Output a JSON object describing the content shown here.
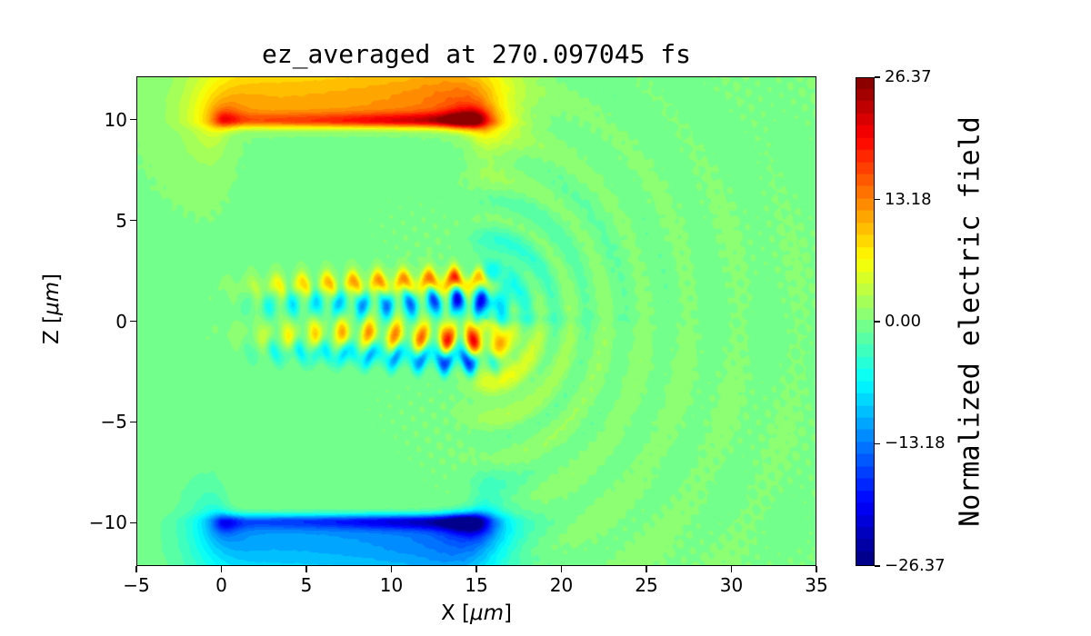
{
  "chart_data": {
    "type": "heatmap",
    "title": "ez_averaged at 270.097045 fs",
    "xlabel": {
      "prefix": "X [",
      "unit": "μm",
      "suffix": "]"
    },
    "ylabel": {
      "prefix": "Z [",
      "unit": "μm",
      "suffix": "]"
    },
    "xlim": [
      -5,
      35
    ],
    "ylim": [
      -12.14,
      12.14
    ],
    "xticks": [
      {
        "value": -5,
        "label": "−5"
      },
      {
        "value": 0,
        "label": "0"
      },
      {
        "value": 5,
        "label": "5"
      },
      {
        "value": 10,
        "label": "10"
      },
      {
        "value": 15,
        "label": "15"
      },
      {
        "value": 20,
        "label": "20"
      },
      {
        "value": 25,
        "label": "25"
      },
      {
        "value": 30,
        "label": "30"
      },
      {
        "value": 35,
        "label": "35"
      }
    ],
    "yticks": [
      {
        "value": 10,
        "label": "10"
      },
      {
        "value": 5,
        "label": "5"
      },
      {
        "value": 0,
        "label": "0"
      },
      {
        "value": -5,
        "label": "−5"
      },
      {
        "value": -10,
        "label": "−10"
      }
    ],
    "colorbar": {
      "label": "Normalized electric field",
      "vmin": -26.37,
      "vmax": 26.37,
      "colormap": "jet",
      "levels": 40,
      "ticks": [
        {
          "value": 26.37,
          "label": "26.37"
        },
        {
          "value": 13.18,
          "label": "13.18"
        },
        {
          "value": 0,
          "label": "0.00"
        },
        {
          "value": -13.18,
          "label": "−13.18"
        },
        {
          "value": -26.37,
          "label": "−26.37"
        }
      ]
    },
    "field_model": {
      "description": "time-averaged Ez: charged plate pair at z=+/-10 um (0<=x<=15), turbulent wakefield rows near z=0 for 2<=x<=16, radiation ripples centered near x=15.6",
      "plates": [
        {
          "z": 10,
          "sign": 1,
          "x0": 0,
          "x1": 15
        },
        {
          "z": -10,
          "sign": -1,
          "x0": 0,
          "x1": 15
        }
      ],
      "plate_shape": {
        "band_amp_base": 5,
        "band_amp_gain": 7,
        "band_w": 0.26,
        "halo_amp": 11.8,
        "halo_w": 2.4,
        "fan_amp_left": 11,
        "fan_amp_right": 13,
        "fan_decay_left": 1.25,
        "fan_decay_right": 1.5,
        "tip_hot_left": 4,
        "tip_hot_right": 9
      },
      "wake": {
        "x_start": 2.0,
        "x_end": 16.0,
        "grow_mid": 6,
        "boost_x": 14.2,
        "boost_gain": 0.5
      },
      "wake_rows": [
        {
          "z0": 1.8,
          "sign": 1,
          "amp": 15,
          "lam": 1.5,
          "ph": 0.3,
          "w": 0.38,
          "zig": 0.26,
          "zlam": 1.5,
          "zph": 1.0,
          "slope": 0.025,
          "lb": 0.72,
          "la": 0.28
        },
        {
          "z0": 0.95,
          "sign": -1,
          "amp": 16,
          "lam": 1.4,
          "ph": 2.0,
          "w": 0.5,
          "zig": 0.18,
          "zlam": 1.7,
          "zph": 0.2,
          "slope": 0.01,
          "lb": 0.5,
          "la": 0.5
        },
        {
          "z0": -0.75,
          "sign": 1,
          "amp": 15,
          "lam": 1.55,
          "ph": 4.2,
          "w": 0.52,
          "zig": 0.2,
          "zlam": 1.8,
          "zph": 2.5,
          "slope": -0.005,
          "lb": 0.5,
          "la": 0.5
        },
        {
          "z0": -1.7,
          "sign": -1,
          "amp": 14,
          "lam": 1.45,
          "ph": 1.2,
          "w": 0.4,
          "zig": 0.28,
          "zlam": 1.6,
          "zph": 3.6,
          "slope": -0.03,
          "lb": 0.7,
          "la": 0.3
        }
      ],
      "radiation": {
        "cx": 15.6,
        "cz": 0.1,
        "amp": 3.1,
        "decay": 7.0,
        "lam0": 1.35,
        "chirp": 0.05,
        "dipole": 5.0,
        "dipole_r": 1.9,
        "dipole_w": 1.5,
        "dipole_bg": 1.9,
        "streak_amp": -4.5,
        "streak_z": 0.1,
        "streak_w": 0.24
      },
      "noise": {
        "base": 0.12,
        "speckle": 0.5,
        "speckle_x": 13,
        "speckle_sharp": 2.0
      }
    }
  }
}
